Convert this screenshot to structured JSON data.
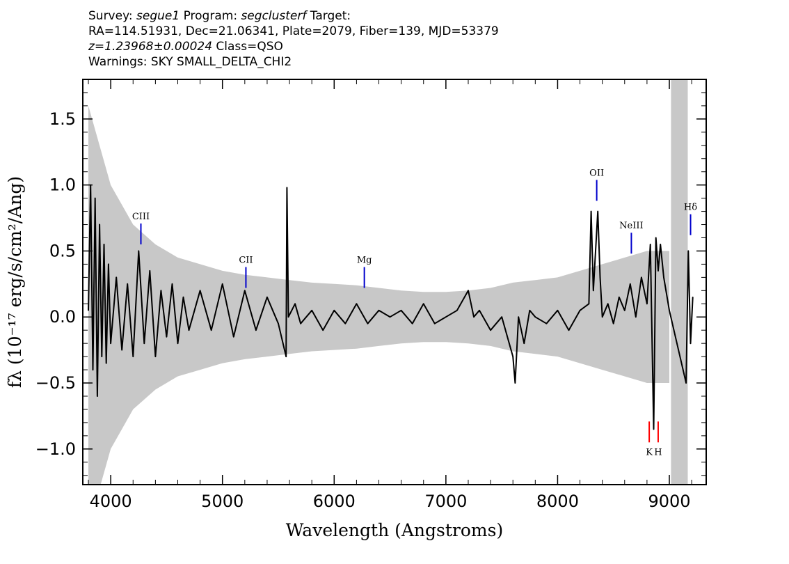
{
  "header": {
    "line1": {
      "survey_label": "Survey: ",
      "survey_value": "segue1",
      "program_label": " Program: ",
      "program_value": "segclusterf",
      "target_label": " Target:"
    },
    "line2": "RA=114.51931, Dec=21.06341, Plate=2079, Fiber=139, MJD=53379",
    "line3": {
      "redshift": "z=1.23968±0.00024",
      "class": " Class=QSO"
    },
    "line4": "Warnings: SKY SMALL_DELTA_CHI2"
  },
  "chart_data": {
    "type": "line",
    "title": "",
    "xlabel": "Wavelength (Angstroms)",
    "ylabel": "fλ (10⁻¹⁷ erg/s/cm²/Ang)",
    "xlim": [
      3750,
      9330
    ],
    "ylim": [
      -1.27,
      1.8
    ],
    "x_ticks": [
      4000,
      5000,
      6000,
      7000,
      8000,
      9000
    ],
    "x_tick_labels": [
      "4000",
      "5000",
      "6000",
      "7000",
      "8000",
      "9000"
    ],
    "y_ticks": [
      -1.0,
      -0.5,
      0.0,
      0.5,
      1.0,
      1.5
    ],
    "y_tick_labels": [
      "−1.0",
      "−0.5",
      "0.0",
      "0.5",
      "1.0",
      "1.5"
    ],
    "grid": false,
    "masked_region": [
      9015,
      9165
    ],
    "series": [
      {
        "role": "flux",
        "color": "#000000",
        "x": [
          3800,
          3820,
          3840,
          3860,
          3880,
          3900,
          3920,
          3940,
          3960,
          3980,
          4000,
          4050,
          4100,
          4150,
          4200,
          4250,
          4300,
          4350,
          4400,
          4450,
          4500,
          4550,
          4600,
          4650,
          4700,
          4800,
          4900,
          5000,
          5100,
          5200,
          5300,
          5400,
          5500,
          5570,
          5577,
          5590,
          5650,
          5700,
          5800,
          5900,
          6000,
          6100,
          6200,
          6300,
          6400,
          6500,
          6600,
          6700,
          6800,
          6900,
          7000,
          7100,
          7200,
          7250,
          7300,
          7400,
          7500,
          7600,
          7620,
          7650,
          7700,
          7750,
          7800,
          7900,
          8000,
          8100,
          8200,
          8280,
          8300,
          8320,
          8340,
          8360,
          8380,
          8400,
          8450,
          8500,
          8550,
          8600,
          8650,
          8700,
          8750,
          8800,
          8830,
          8860,
          8880,
          8900,
          8920,
          8950,
          9000,
          9150,
          9170,
          9190,
          9210
        ],
        "y": [
          0.05,
          1.0,
          -0.4,
          0.9,
          -0.6,
          0.7,
          -0.3,
          0.55,
          -0.35,
          0.4,
          -0.2,
          0.3,
          -0.25,
          0.25,
          -0.3,
          0.5,
          -0.2,
          0.35,
          -0.3,
          0.2,
          -0.15,
          0.25,
          -0.2,
          0.15,
          -0.1,
          0.2,
          -0.1,
          0.25,
          -0.15,
          0.2,
          -0.1,
          0.15,
          -0.05,
          -0.3,
          0.98,
          0.0,
          0.1,
          -0.05,
          0.05,
          -0.1,
          0.05,
          -0.05,
          0.1,
          -0.05,
          0.05,
          0.0,
          0.05,
          -0.05,
          0.1,
          -0.05,
          0.0,
          0.05,
          0.2,
          0.0,
          0.05,
          -0.1,
          0.0,
          -0.3,
          -0.5,
          0.0,
          -0.2,
          0.05,
          0.0,
          -0.05,
          0.05,
          -0.1,
          0.05,
          0.1,
          0.8,
          0.2,
          0.5,
          0.8,
          0.3,
          0.0,
          0.1,
          -0.05,
          0.15,
          0.05,
          0.25,
          0.0,
          0.3,
          0.1,
          0.55,
          -0.85,
          0.6,
          0.35,
          0.55,
          0.3,
          0.05,
          -0.5,
          0.5,
          -0.2,
          0.15
        ]
      },
      {
        "role": "error",
        "color": "#c8c8c8",
        "x": [
          3800,
          4000,
          4200,
          4400,
          4600,
          4800,
          5000,
          5200,
          5400,
          5600,
          5800,
          6000,
          6200,
          6400,
          6600,
          6800,
          7000,
          7200,
          7400,
          7600,
          7800,
          8000,
          8200,
          8400,
          8600,
          8800,
          9000
        ],
        "y": [
          1.6,
          1.0,
          0.7,
          0.55,
          0.45,
          0.4,
          0.35,
          0.32,
          0.3,
          0.28,
          0.26,
          0.25,
          0.24,
          0.22,
          0.2,
          0.19,
          0.19,
          0.2,
          0.22,
          0.26,
          0.28,
          0.3,
          0.35,
          0.4,
          0.45,
          0.5,
          0.5
        ]
      }
    ],
    "line_markers": [
      {
        "label": "CIII",
        "x": 4270,
        "color": "#0000cc",
        "y": 0.55
      },
      {
        "label": "CII",
        "x": 5210,
        "color": "#0000cc",
        "y": 0.22
      },
      {
        "label": "Mg",
        "x": 6270,
        "color": "#0000cc",
        "y": 0.22
      },
      {
        "label": "OII",
        "x": 8350,
        "color": "#0000cc",
        "y": 0.88
      },
      {
        "label": "NeIII",
        "x": 8660,
        "color": "#0000cc",
        "y": 0.48
      },
      {
        "label": "Hδ",
        "x": 9190,
        "color": "#0000cc",
        "y": 0.62
      },
      {
        "label": "K",
        "x": 8820,
        "color": "#ff0000",
        "y": -0.95
      },
      {
        "label": "H",
        "x": 8900,
        "color": "#ff0000",
        "y": -0.95
      }
    ]
  }
}
